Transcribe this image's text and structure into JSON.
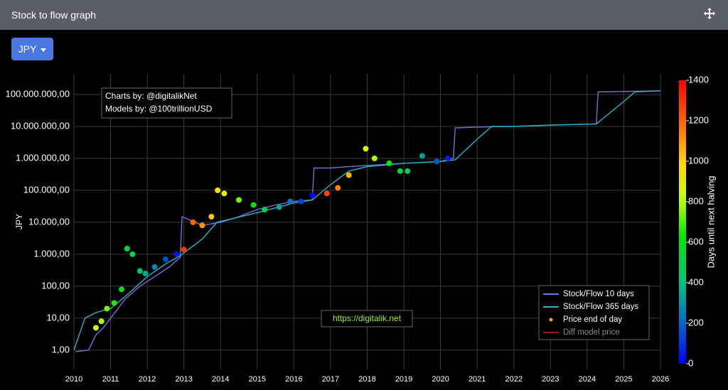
{
  "header": {
    "title": "Stock to flow graph"
  },
  "controls": {
    "currency_button": "JPY"
  },
  "chart_data": {
    "type": "line",
    "y_label": "JPY",
    "log_y": true,
    "grid": true,
    "xlim": [
      2010,
      2026
    ],
    "xticks": [
      2010,
      2011,
      2012,
      2013,
      2014,
      2015,
      2016,
      2017,
      2018,
      2019,
      2020,
      2021,
      2022,
      2023,
      2024,
      2025,
      2026
    ],
    "ylim": [
      0.25,
      440000000
    ],
    "yticks": [
      {
        "value": 1,
        "label": "1,00"
      },
      {
        "value": 10,
        "label": "10,00"
      },
      {
        "value": 100,
        "label": "100,00"
      },
      {
        "value": 1000,
        "label": "1.000,00"
      },
      {
        "value": 10000,
        "label": "10.000,00"
      },
      {
        "value": 100000,
        "label": "100.000,00"
      },
      {
        "value": 1000000,
        "label": "1.000.000,00"
      },
      {
        "value": 10000000,
        "label": "10.000.000,00"
      },
      {
        "value": 100000000,
        "label": "100.000.000,00"
      }
    ],
    "annotations": [
      "Charts by: @digitalikNet",
      "Models by: @100trillionUSD",
      "https://digitalik.net"
    ],
    "series": [
      {
        "name": "Stock/Flow 10 days",
        "type": "line",
        "color": "#7b6cd9",
        "x": [
          2010.05,
          2010.4,
          2010.6,
          2010.8,
          2011.0,
          2011.4,
          2011.8,
          2012.2,
          2012.6,
          2012.9,
          2012.95,
          2013.5,
          2014.0,
          2014.5,
          2015.0,
          2015.5,
          2016.0,
          2016.5,
          2016.55,
          2017.0,
          2017.5,
          2018.0,
          2019.0,
          2020.0,
          2020.35,
          2020.4,
          2021.0,
          2022.0,
          2023.0,
          2024.25,
          2024.3,
          2026.0
        ],
        "values": [
          0.9,
          1,
          3,
          5,
          10,
          40,
          100,
          200,
          400,
          800,
          15000,
          8000,
          10000,
          15000,
          25000,
          35000,
          45000,
          50000,
          500000,
          500000,
          550000,
          600000,
          700000,
          800000,
          1000000,
          9000000,
          9500000,
          10000000,
          11000000,
          12000000,
          120000000,
          130000000
        ]
      },
      {
        "name": "Stock/Flow 365 days",
        "type": "line",
        "color": "#27b4c8",
        "x": [
          2010.0,
          2010.3,
          2010.6,
          2011.0,
          2011.5,
          2012.0,
          2012.5,
          2012.9,
          2013.5,
          2013.9,
          2015.0,
          2016.0,
          2016.5,
          2017.0,
          2017.5,
          2018.0,
          2019.0,
          2020.0,
          2020.4,
          2021.0,
          2021.4,
          2022.0,
          2023.0,
          2024.25,
          2025.0,
          2025.3,
          2026.0
        ],
        "values": [
          1,
          10,
          15,
          20,
          60,
          200,
          500,
          900,
          3000,
          10000,
          20000,
          40000,
          50000,
          150000,
          400000,
          550000,
          700000,
          800000,
          900000,
          4000000,
          10000000,
          10000000,
          11000000,
          12000000,
          60000000,
          120000000,
          130000000
        ]
      },
      {
        "name": "Price end of day",
        "type": "scatter",
        "color": "#f5a623",
        "x": [
          2010.6,
          2010.75,
          2010.9,
          2011.1,
          2011.3,
          2011.45,
          2011.6,
          2011.8,
          2011.95,
          2012.2,
          2012.5,
          2012.8,
          2013.0,
          2013.25,
          2013.5,
          2013.75,
          2013.92,
          2014.1,
          2014.5,
          2014.9,
          2015.2,
          2015.6,
          2015.9,
          2016.2,
          2016.5,
          2016.9,
          2017.2,
          2017.5,
          2017.96,
          2018.2,
          2018.6,
          2018.9,
          2019.1,
          2019.5,
          2019.9,
          2020.2
        ],
        "values": [
          5,
          8,
          20,
          30,
          80,
          1500,
          1000,
          300,
          250,
          400,
          700,
          1000,
          1400,
          10000,
          8000,
          15000,
          100000,
          80000,
          50000,
          35000,
          25000,
          30000,
          45000,
          45000,
          70000,
          80000,
          120000,
          300000,
          2000000,
          1000000,
          700000,
          400000,
          400000,
          1200000,
          800000,
          1000000
        ],
        "color_values": [
          843,
          788,
          734,
          661,
          588,
          533,
          478,
          405,
          350,
          259,
          150,
          40,
          1288,
          1197,
          1106,
          1015,
          953,
          887,
          741,
          595,
          486,
          339,
          230,
          120,
          11,
          1263,
          1153,
          1044,
          876,
          788,
          642,
          533,
          460,
          314,
          168,
          58
        ]
      },
      {
        "name": "Diff model price",
        "type": "line",
        "color": "#8b1a1a",
        "visible": false
      }
    ],
    "colorbar": {
      "title": "Days until next halving",
      "lim": [
        0,
        1400
      ],
      "ticks": [
        0,
        200,
        400,
        600,
        800,
        1000,
        1200,
        1400
      ]
    }
  }
}
